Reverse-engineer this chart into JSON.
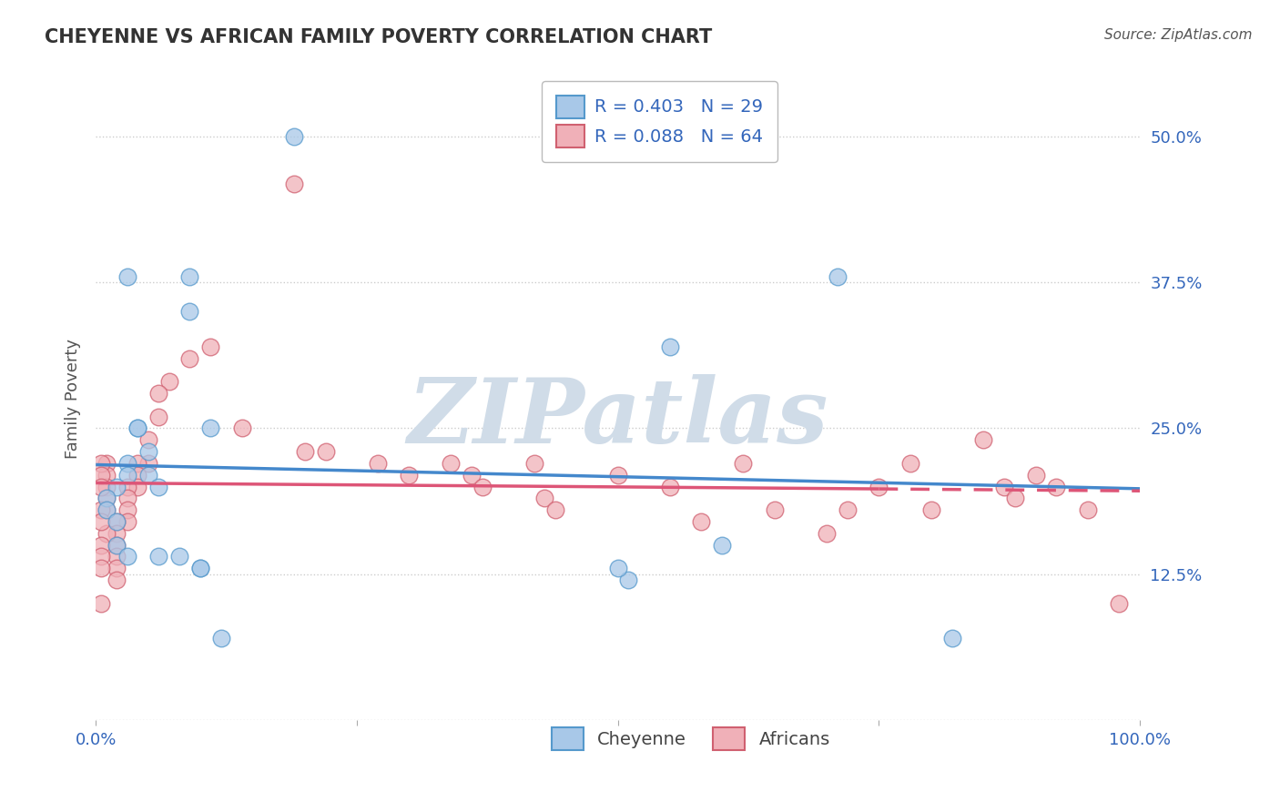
{
  "title": "CHEYENNE VS AFRICAN FAMILY POVERTY CORRELATION CHART",
  "source": "Source: ZipAtlas.com",
  "ylabel": "Family Poverty",
  "xlim": [
    0,
    100
  ],
  "ylim": [
    0,
    55
  ],
  "yticks": [
    0,
    12.5,
    25.0,
    37.5,
    50.0
  ],
  "xticks": [
    0,
    25,
    50,
    75,
    100
  ],
  "legend_r1": "R = 0.403   N = 29",
  "legend_r2": "R = 0.088   N = 64",
  "legend_label1": "Cheyenne",
  "legend_label2": "Africans",
  "cheyenne_color": "#a8c8e8",
  "cheyenne_edge": "#5599cc",
  "african_color": "#f0b0b8",
  "african_edge": "#d06070",
  "line_blue": "#4488cc",
  "line_pink": "#dd5577",
  "watermark_text": "ZIPatlas",
  "cheyenne_x": [
    19,
    3,
    9,
    9,
    11,
    4,
    4,
    5,
    3,
    3,
    5,
    6,
    2,
    1,
    1,
    2,
    2,
    3,
    6,
    8,
    60,
    71,
    55,
    10,
    10,
    51,
    50,
    12,
    82
  ],
  "cheyenne_y": [
    50,
    38,
    38,
    35,
    25,
    25,
    25,
    23,
    22,
    21,
    21,
    20,
    20,
    19,
    18,
    17,
    15,
    14,
    14,
    14,
    15,
    38,
    32,
    13,
    13,
    12,
    13,
    7,
    7
  ],
  "african_x": [
    19,
    11,
    9,
    7,
    6,
    6,
    5,
    5,
    4,
    4,
    4,
    3,
    3,
    3,
    3,
    2,
    2,
    2,
    2,
    2,
    2,
    1,
    1,
    1,
    1,
    1,
    1,
    0.5,
    0.5,
    0.5,
    0.5,
    0.5,
    0.5,
    0.5,
    0.5,
    0.5,
    14,
    20,
    22,
    27,
    30,
    34,
    36,
    37,
    42,
    43,
    44,
    50,
    55,
    58,
    62,
    65,
    70,
    72,
    75,
    78,
    80,
    85,
    87,
    88,
    90,
    92,
    95,
    98
  ],
  "african_y": [
    46,
    32,
    31,
    29,
    28,
    26,
    24,
    22,
    22,
    21,
    20,
    20,
    19,
    18,
    17,
    17,
    16,
    15,
    14,
    13,
    12,
    22,
    21,
    20,
    19,
    18,
    16,
    22,
    21,
    20,
    18,
    17,
    15,
    14,
    13,
    10,
    25,
    23,
    23,
    22,
    21,
    22,
    21,
    20,
    22,
    19,
    18,
    21,
    20,
    17,
    22,
    18,
    16,
    18,
    20,
    22,
    18,
    24,
    20,
    19,
    21,
    20,
    18,
    10
  ],
  "title_fontsize": 15,
  "source_fontsize": 11,
  "tick_fontsize": 13,
  "ylabel_fontsize": 13,
  "legend_fontsize": 14,
  "tick_color": "#3366bb",
  "title_color": "#333333",
  "source_color": "#555555",
  "ylabel_color": "#555555",
  "grid_color": "#cccccc",
  "watermark_color": "#d0dce8",
  "pink_dash_start_x": 75
}
